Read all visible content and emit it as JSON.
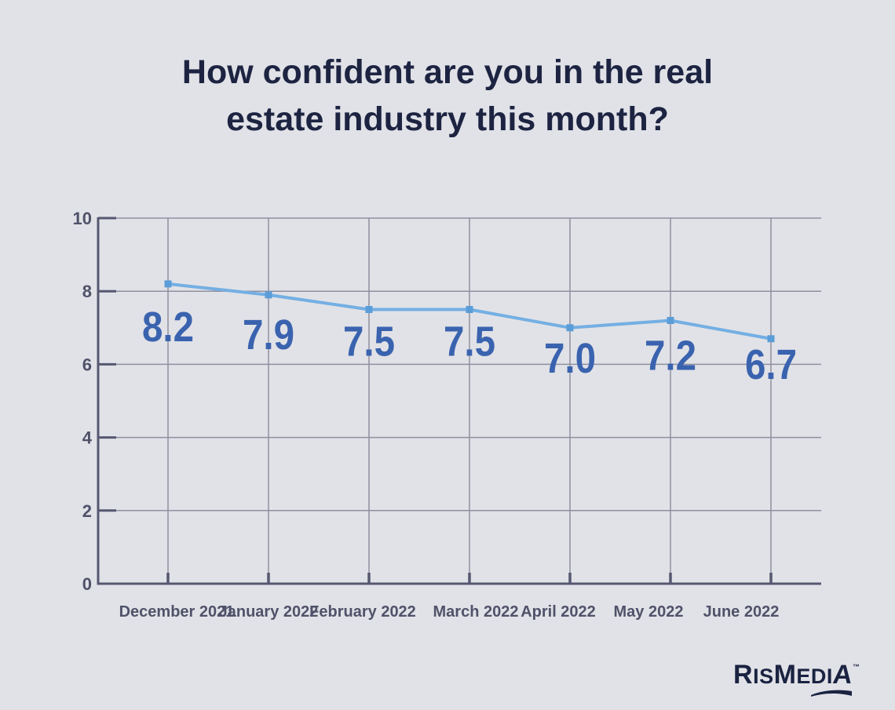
{
  "title": {
    "full": "How confident are you in the real estate industry this month?",
    "lines": [
      "How confident are you in the real",
      "estate industry this month?"
    ]
  },
  "chart_data": {
    "type": "line",
    "title": "How confident are you in the real estate industry this month?",
    "categories": [
      "December 2021",
      "January 2022",
      "February 2022",
      "March 2022",
      "April 2022",
      "May 2022",
      "June 2022"
    ],
    "values": [
      8.2,
      7.9,
      7.5,
      7.5,
      7.0,
      7.2,
      6.7
    ],
    "data_labels": [
      "8.2",
      "7.9",
      "7.5",
      "7.5",
      "7.0",
      "7.2",
      "6.7"
    ],
    "xlabel": "",
    "ylabel": "",
    "ylim": [
      0,
      10
    ],
    "yticks": [
      0,
      2,
      4,
      6,
      8,
      10
    ],
    "grid": true,
    "legend": false,
    "marker": "square"
  },
  "colors": {
    "background": "#e1e2e7",
    "title": "#1d2442",
    "line": "#74afe3",
    "marker": "#5b9dd8",
    "value_label": "#3a63af",
    "grid": "#8f90a0",
    "axis": "#565871",
    "tick_label": "#50526a",
    "logo": "#1b2342"
  },
  "logo": {
    "segments": [
      "R",
      "IS",
      "M",
      "EDI",
      "A"
    ],
    "trademark": "™",
    "name": "RISMedia"
  }
}
